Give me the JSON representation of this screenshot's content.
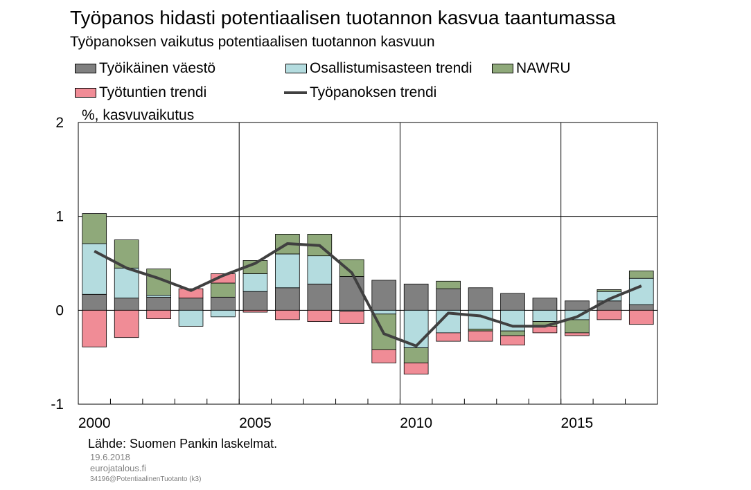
{
  "chart_data": {
    "type": "bar",
    "title": "Työpanos hidasti potentiaalisen tuotannon kasvua taantumassa",
    "subtitle": "Työpanoksen vaikutus potentiaalisen tuotannon kasvuun",
    "ylabel": "%, kasvuvaikutus",
    "ylim": [
      -1,
      2
    ],
    "yticks": [
      2,
      1,
      0,
      -1
    ],
    "xtick_labels": [
      "2000",
      "2005",
      "2010",
      "2015"
    ],
    "categories": [
      "2000",
      "2001",
      "2002",
      "2003",
      "2004",
      "2005",
      "2006",
      "2007",
      "2008",
      "2009",
      "2010",
      "2011",
      "2012",
      "2013",
      "2014",
      "2015",
      "2016",
      "2017"
    ],
    "stacked": true,
    "series": [
      {
        "name": "Työikäinen väestö",
        "kind": "bar",
        "color": "#808080",
        "values": [
          0.17,
          0.13,
          0.14,
          0.13,
          0.14,
          0.2,
          0.24,
          0.28,
          0.36,
          0.32,
          0.28,
          0.23,
          0.24,
          0.18,
          0.13,
          0.1,
          0.1,
          0.06
        ]
      },
      {
        "name": "Osallistumisasteen trendi",
        "kind": "bar",
        "color": "#b4dcdf",
        "values": [
          0.54,
          0.32,
          0.02,
          -0.17,
          -0.07,
          0.19,
          0.36,
          0.3,
          -0.01,
          -0.04,
          -0.4,
          -0.24,
          -0.2,
          -0.22,
          -0.12,
          -0.1,
          0.1,
          0.28
        ]
      },
      {
        "name": "NAWRU",
        "kind": "bar",
        "color": "#8fa97a",
        "values": [
          0.32,
          0.3,
          0.28,
          0.0,
          0.15,
          0.14,
          0.21,
          0.23,
          0.18,
          -0.38,
          -0.16,
          0.08,
          -0.02,
          -0.05,
          -0.05,
          -0.14,
          0.02,
          0.08
        ]
      },
      {
        "name": "Työtuntien trendi",
        "kind": "bar",
        "color": "#f08c96",
        "values": [
          -0.39,
          -0.29,
          -0.09,
          0.1,
          0.1,
          -0.02,
          -0.1,
          -0.12,
          -0.13,
          -0.14,
          -0.12,
          -0.09,
          -0.11,
          -0.1,
          -0.07,
          -0.03,
          -0.1,
          -0.15
        ]
      },
      {
        "name": "Työpanoksen trendi",
        "kind": "line",
        "color": "#404040",
        "values": [
          0.63,
          0.45,
          0.34,
          0.21,
          0.37,
          0.5,
          0.71,
          0.69,
          0.4,
          -0.25,
          -0.38,
          -0.03,
          -0.06,
          -0.17,
          -0.17,
          -0.07,
          0.12,
          0.26
        ]
      }
    ],
    "grid": true,
    "legend_position": "top"
  },
  "source_text": "Lähde: Suomen Pankin laskelmat.",
  "date_text": "19.6.2018",
  "site_text": "eurojatalous.fi",
  "id_text": "34196@PotentiaalinenTuotanto (k3)"
}
